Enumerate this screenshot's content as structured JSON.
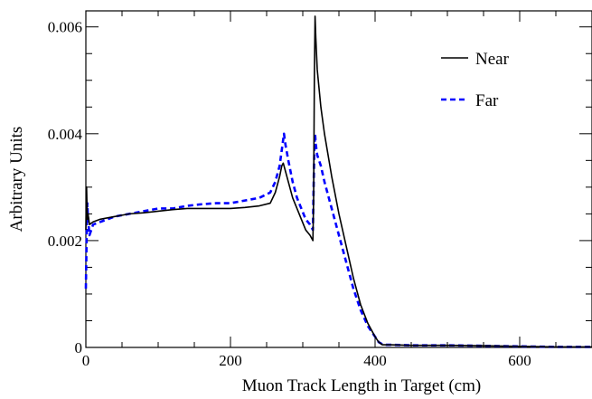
{
  "chart_data": {
    "type": "line",
    "xlabel": "Muon Track Length in Target (cm)",
    "ylabel": "Arbitrary Units",
    "xlim": [
      0,
      700
    ],
    "ylim": [
      0,
      0.0063
    ],
    "x_ticks": [
      {
        "value": 0,
        "label": "0"
      },
      {
        "value": 200,
        "label": "200"
      },
      {
        "value": 400,
        "label": "400"
      },
      {
        "value": 600,
        "label": "600"
      }
    ],
    "y_ticks": [
      {
        "value": 0,
        "label": "0"
      },
      {
        "value": 0.002,
        "label": "0.002"
      },
      {
        "value": 0.004,
        "label": "0.004"
      },
      {
        "value": 0.006,
        "label": "0.006"
      }
    ],
    "grid": false,
    "legend_position": "top-right",
    "series": [
      {
        "name": "Near",
        "color": "#000000",
        "dash": "solid",
        "x": [
          0,
          1,
          2,
          3,
          5,
          10,
          20,
          40,
          60,
          80,
          100,
          120,
          140,
          160,
          180,
          200,
          220,
          240,
          255,
          262,
          268,
          271,
          273,
          276,
          280,
          286,
          292,
          298,
          304,
          310,
          314,
          315,
          316,
          317,
          318,
          320,
          325,
          330,
          340,
          350,
          360,
          370,
          380,
          390,
          400,
          405,
          410,
          415,
          420,
          450,
          500,
          550,
          600,
          650,
          700
        ],
        "y": [
          0.0022,
          0.003,
          0.0024,
          0.0025,
          0.0023,
          0.00235,
          0.0024,
          0.00245,
          0.0025,
          0.00252,
          0.00255,
          0.00258,
          0.0026,
          0.0026,
          0.0026,
          0.0026,
          0.00262,
          0.00265,
          0.0027,
          0.0029,
          0.0032,
          0.0034,
          0.00345,
          0.0033,
          0.0031,
          0.0028,
          0.0026,
          0.0024,
          0.0022,
          0.0021,
          0.002,
          0.0028,
          0.005,
          0.0062,
          0.0058,
          0.0052,
          0.0045,
          0.004,
          0.0032,
          0.0025,
          0.0019,
          0.0013,
          0.0008,
          0.00045,
          0.0002,
          0.0001,
          5e-05,
          5e-05,
          5e-05,
          4e-05,
          4e-05,
          3e-05,
          2e-05,
          1e-05,
          1e-05
        ]
      },
      {
        "name": "Far",
        "color": "#0000ff",
        "dash": "dashed",
        "x": [
          0,
          1,
          2,
          3,
          5,
          10,
          20,
          40,
          60,
          80,
          100,
          120,
          140,
          160,
          180,
          200,
          220,
          240,
          255,
          262,
          268,
          271,
          274,
          276,
          280,
          286,
          292,
          298,
          304,
          310,
          314,
          315,
          316,
          317,
          318,
          320,
          325,
          330,
          340,
          350,
          360,
          370,
          380,
          390,
          400,
          405,
          410,
          415,
          420,
          450,
          500,
          550,
          600,
          650,
          700
        ],
        "y": [
          0.0011,
          0.002,
          0.0027,
          0.0024,
          0.0021,
          0.0023,
          0.00235,
          0.00245,
          0.0025,
          0.00255,
          0.0026,
          0.0026,
          0.00265,
          0.00268,
          0.0027,
          0.0027,
          0.00275,
          0.0028,
          0.0029,
          0.0031,
          0.0034,
          0.0037,
          0.004,
          0.0038,
          0.0035,
          0.0031,
          0.0028,
          0.0026,
          0.0024,
          0.0023,
          0.0022,
          0.003,
          0.0037,
          0.004,
          0.0038,
          0.0036,
          0.0034,
          0.0031,
          0.0026,
          0.0021,
          0.0016,
          0.0011,
          0.0007,
          0.0004,
          0.0002,
          0.0001,
          6e-05,
          5e-05,
          5e-05,
          4e-05,
          4e-05,
          3e-05,
          2e-05,
          1e-05,
          1e-05
        ]
      }
    ]
  }
}
